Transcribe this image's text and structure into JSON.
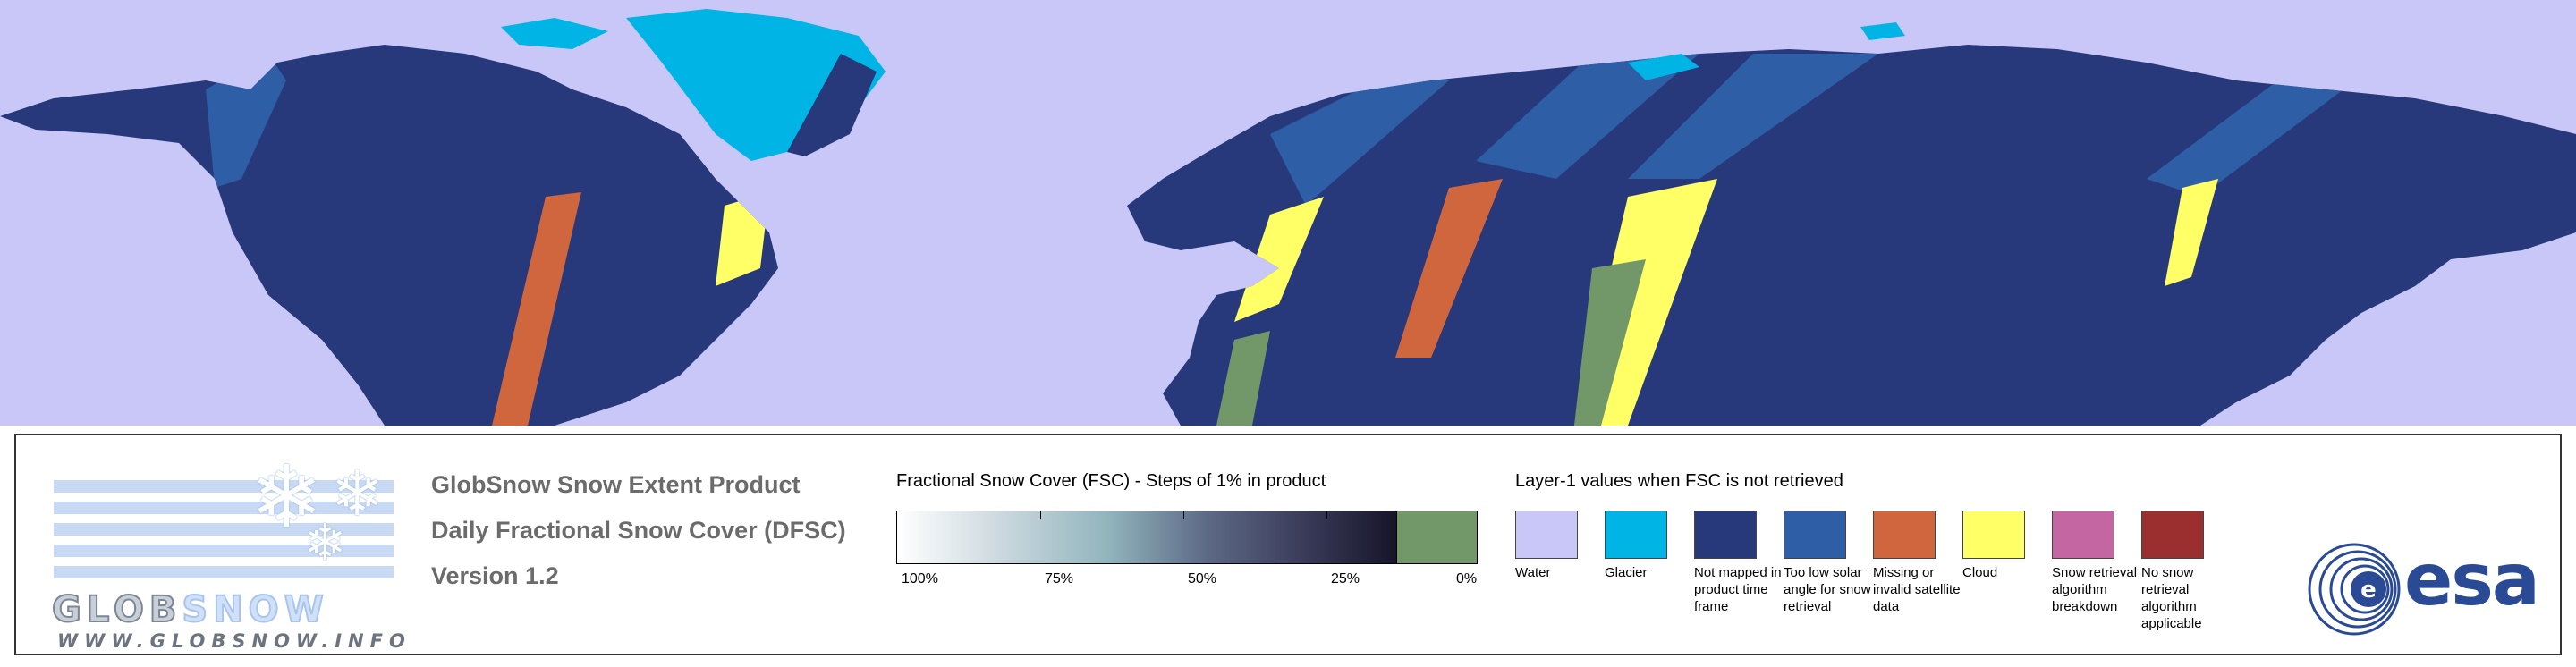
{
  "product": {
    "title": "GlobSnow Snow Extent Product",
    "subtitle": "Daily Fractional Snow Cover (DFSC)",
    "version": "Version 1.2"
  },
  "logo": {
    "brand_part1": "GLOB",
    "brand_part2": "SNOW",
    "url": "WWW.GLOBSNOW.INFO"
  },
  "fsc_legend": {
    "title": "Fractional Snow Cover (FSC) - Steps of 1% in product",
    "tick_labels": [
      "100%",
      "75%",
      "50%",
      "25%",
      "0%"
    ]
  },
  "layer1_legend": {
    "title": "Layer-1 values when FSC is not retrieved",
    "items": [
      {
        "label": "Water",
        "color": "#c9c7f7"
      },
      {
        "label": "Glacier",
        "color": "#00b4e6"
      },
      {
        "label": "Not mapped in product time frame",
        "color": "#27397a"
      },
      {
        "label": "Too low solar angle for snow retrieval",
        "color": "#2d5ea6"
      },
      {
        "label": "Missing or invalid satellite data",
        "color": "#d0663e"
      },
      {
        "label": "Cloud",
        "color": "#ffff66"
      },
      {
        "label": "Snow retrieval algorithm breakdown",
        "color": "#c366a1"
      },
      {
        "label": "No snow retrieval algorithm applicable",
        "color": "#9b2e2e"
      }
    ]
  },
  "esa_logo": {
    "text": "esa",
    "color": "#2b4a95"
  },
  "map": {
    "water_color": "#c9c7f7",
    "land_color": "#27397a",
    "glacier_color": "#00b4e6",
    "low_solar_color": "#2d5ea6",
    "missing_color": "#d0663e",
    "cloud_color": "#ffff66",
    "snow_free_color": "#729768"
  }
}
